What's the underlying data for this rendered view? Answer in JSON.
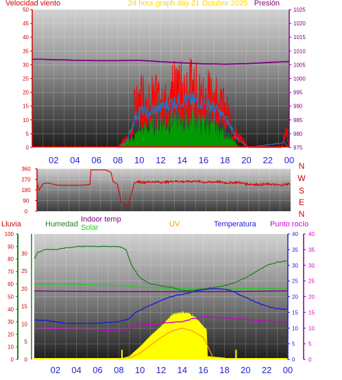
{
  "header": {
    "left_title": "Velocidad viento",
    "center_title": "24 hour graph day   21 Octubre 2025",
    "right_title": "Presión"
  },
  "colors": {
    "wind_speed": "#ff0000",
    "wind_avg": "#1e78c8",
    "wind_green": "#00a000",
    "pressure": "#800080",
    "wind_dir": "#e00000",
    "rain": "#ff0000",
    "humidity": "#208020",
    "indoor_temp": "#800080",
    "solar": "#ffff00",
    "uv": "#ff9900",
    "temperature": "#1a1ad8",
    "dew_point": "#d000d0",
    "left_axis": "#d00000",
    "right_axis": "#800080",
    "title_yellow": "#ffd700"
  },
  "chart_data": [
    {
      "type": "line",
      "title": "24 hour graph day   21 Octubre 2025",
      "y_left_label": "Velocidad viento",
      "y_right_label": "Presión",
      "x_ticks": [
        "02",
        "04",
        "06",
        "08",
        "10",
        "12",
        "14",
        "16",
        "18",
        "20",
        "22",
        "00"
      ],
      "y_left_ticks": [
        "0",
        "5",
        "10",
        "15",
        "20",
        "25",
        "30",
        "35",
        "40",
        "45",
        "50"
      ],
      "y_right_ticks": [
        "975",
        "980",
        "985",
        "990",
        "995",
        "1000",
        "1005",
        "1010",
        "1015",
        "1020",
        "1025"
      ],
      "ylim_left": [
        0,
        50
      ],
      "ylim_right": [
        975,
        1025
      ],
      "xlim_hours": [
        0,
        24
      ],
      "grid": true,
      "series": [
        {
          "name": "pressure",
          "axis": "right",
          "x": [
            0,
            1,
            2,
            3,
            4,
            5,
            6,
            7,
            8,
            9,
            10,
            11,
            12,
            13,
            14,
            15,
            16,
            17,
            18,
            19,
            20,
            21,
            22,
            23,
            24
          ],
          "y": [
            1007,
            1007,
            1006.8,
            1006.8,
            1006.6,
            1006.6,
            1006.5,
            1006.5,
            1006.5,
            1006.6,
            1006.6,
            1006.4,
            1006.1,
            1005.9,
            1005.7,
            1005.5,
            1005.3,
            1005.3,
            1005.2,
            1005.3,
            1005.4,
            1005.6,
            1005.8,
            1006.0,
            1006.2
          ]
        },
        {
          "name": "gust_envelope",
          "axis": "left",
          "x": [
            8.0,
            8.4,
            8.8,
            9.1,
            9.6,
            10.2,
            11.0,
            12.0,
            13.0,
            13.6,
            14.2,
            15.0,
            16.0,
            16.6,
            17.2,
            18.0,
            18.6,
            19.2,
            19.8,
            20.2,
            23.3,
            23.7,
            24.0
          ],
          "y": [
            0,
            3,
            6,
            2,
            24,
            28,
            27,
            26,
            30,
            34,
            31,
            33,
            29,
            31,
            27,
            22,
            12,
            6,
            3,
            0,
            0,
            12,
            0
          ]
        },
        {
          "name": "average_envelope",
          "axis": "left",
          "x": [
            8.0,
            8.8,
            9.6,
            10.2,
            11.0,
            12.0,
            13.0,
            14.0,
            15.0,
            16.0,
            17.0,
            18.0,
            18.6,
            19.2,
            20.2,
            23.5,
            24.0
          ],
          "y": [
            0,
            2,
            12,
            15,
            14,
            16,
            18,
            19,
            19,
            18,
            16,
            12,
            8,
            3,
            0,
            2,
            0
          ]
        },
        {
          "name": "speed_envelope",
          "axis": "left",
          "x": [
            8.0,
            9.6,
            10.2,
            11.0,
            12.0,
            13.0,
            14.0,
            15.0,
            16.0,
            17.0,
            18.0,
            18.6,
            19.2,
            20.0
          ],
          "y": [
            0,
            6,
            9,
            10,
            12,
            13,
            12,
            14,
            12,
            10,
            7,
            4,
            1,
            0
          ]
        }
      ]
    },
    {
      "type": "line",
      "y_right_labels": [
        "N",
        "W",
        "S",
        "E",
        "N"
      ],
      "y_ticks": [
        "0",
        "90",
        "180",
        "270",
        "360"
      ],
      "ylim": [
        0,
        360
      ],
      "xlim_hours": [
        0,
        24
      ],
      "series": [
        {
          "name": "wind_direction",
          "x": [
            0,
            0.2,
            0.6,
            1.0,
            2.0,
            3.0,
            4.0,
            5.0,
            5.1,
            6.5,
            7.0,
            7.2,
            7.6,
            8.0,
            8.4,
            8.7,
            9.2,
            9.6,
            10.0,
            11.0,
            12.0,
            13.0,
            14.0,
            15.0,
            16.0,
            17.0,
            18.0,
            19.0,
            20.0,
            21.0,
            22.0,
            23.0,
            24.0
          ],
          "y": [
            230,
            180,
            235,
            240,
            220,
            220,
            220,
            225,
            350,
            350,
            330,
            250,
            230,
            70,
            50,
            60,
            240,
            250,
            245,
            250,
            245,
            255,
            250,
            255,
            245,
            250,
            240,
            245,
            230,
            225,
            230,
            220,
            235
          ]
        }
      ]
    },
    {
      "type": "area",
      "legend": [
        "Lluvia",
        "Humedad",
        "Indoor temp",
        "Solar",
        "UV",
        "Temperatura",
        "Punto rocío"
      ],
      "x_ticks": [
        "02",
        "04",
        "06",
        "08",
        "10",
        "12",
        "14",
        "16",
        "18",
        "20",
        "22",
        "00"
      ],
      "y_rain_ticks": [
        "0",
        "10",
        "20",
        "30",
        "40",
        "50",
        "60",
        "70",
        "80",
        "90",
        "100"
      ],
      "y_humidity_ticks": [
        "0",
        "5",
        "10",
        "15",
        "20",
        "25",
        "30"
      ],
      "y_temp_ticks": [
        "0",
        "5",
        "10",
        "15",
        "20",
        "25",
        "30",
        "35",
        "40"
      ],
      "y_dew_ticks": [
        "0",
        "5",
        "10",
        "15",
        "20",
        "25",
        "30",
        "35",
        "40"
      ],
      "ylim_temp": [
        0,
        40
      ],
      "xlim_hours": [
        0,
        24
      ],
      "grid": true,
      "series": [
        {
          "name": "Humedad",
          "x": [
            0,
            0.3,
            1.0,
            2.0,
            3.0,
            4.0,
            5.0,
            6.0,
            7.0,
            8.0,
            8.7,
            9.2,
            10.0,
            11.0,
            12.0,
            13.0,
            14.0,
            15.0,
            16.0,
            17.0,
            18.0,
            19.0,
            20.0,
            21.0,
            22.0,
            23.0,
            24.0
          ],
          "y": [
            32,
            34,
            35,
            35,
            35.5,
            36,
            36,
            36,
            36,
            36,
            35,
            30,
            26,
            24,
            23.5,
            23,
            22,
            22,
            22.5,
            23,
            23.5,
            24.5,
            26,
            28,
            30,
            31,
            31.5
          ]
        },
        {
          "name": "Indoor temp",
          "x": [
            0,
            4,
            8,
            12,
            16,
            20,
            24
          ],
          "y": [
            21.8,
            21.7,
            21.6,
            21.6,
            21.6,
            21.7,
            21.8
          ]
        },
        {
          "name": "Solar",
          "x": [
            0,
            4,
            8,
            9,
            10,
            12,
            14,
            16,
            18,
            19,
            20,
            22,
            24
          ],
          "y": [
            24,
            24,
            23.5,
            23.3,
            23,
            22.8,
            22.6,
            22.4,
            22.4,
            22.5,
            22.6,
            22.6,
            22.4
          ]
        },
        {
          "name": "Temperatura",
          "x": [
            0,
            1.0,
            2.0,
            3.0,
            4.0,
            5.0,
            6.0,
            7.0,
            8.0,
            8.5,
            9.0,
            9.6,
            10.5,
            11.5,
            12.5,
            13.5,
            14.5,
            15.5,
            16.5,
            17.5,
            18.0,
            18.6,
            19.5,
            20.5,
            21.5,
            22.5,
            23.5,
            24.0
          ],
          "y": [
            12.5,
            12.5,
            12,
            11.5,
            11.5,
            11.5,
            11.5,
            11.8,
            12,
            12.5,
            13,
            15,
            16.5,
            18,
            19.5,
            20.5,
            21,
            22,
            22.5,
            22.5,
            22.3,
            22,
            20.5,
            19,
            17.5,
            16.5,
            16,
            16
          ]
        },
        {
          "name": "Punto rocío",
          "x": [
            0,
            2,
            4,
            6,
            7,
            8,
            8.6,
            9.2,
            10,
            11,
            12,
            13,
            14,
            15,
            16,
            17,
            18,
            19,
            20,
            21,
            22,
            23,
            24
          ],
          "y": [
            9.5,
            9.8,
            9.5,
            9.5,
            9.2,
            9.0,
            9.5,
            10.5,
            11,
            11.2,
            11.5,
            11.8,
            12,
            13,
            13.5,
            13.5,
            13.2,
            13,
            12.8,
            12.5,
            12.2,
            12,
            12
          ]
        },
        {
          "name": "Solar_radiation_area",
          "x": [
            8.0,
            9.0,
            10.0,
            11.0,
            12.0,
            13.0,
            13.5,
            14.0,
            14.5,
            15.0,
            15.5,
            16.0,
            16.3,
            16.4,
            17.0,
            18.0,
            18.6
          ],
          "y": [
            0,
            1,
            4,
            7.5,
            10.5,
            14,
            14.7,
            15,
            14.7,
            14,
            12.5,
            10.5,
            9.5,
            1,
            0.8,
            0.5,
            0
          ]
        },
        {
          "name": "UV",
          "x": [
            8.0,
            9.0,
            10.0,
            11.0,
            12.0,
            13.0,
            14.0,
            15.0,
            16.0,
            16.3,
            17.0
          ],
          "y": [
            0,
            0.5,
            2,
            4.5,
            7,
            9,
            10,
            9,
            7,
            5,
            0
          ]
        }
      ]
    }
  ],
  "bottom": {
    "legend": {
      "rain": "Lluvia",
      "humidity": "Humedad",
      "indoor": "Indoor temp",
      "solar": "Solar",
      "uv": "UV",
      "temperature": "Temperatura",
      "dew": "Punto rocío"
    }
  }
}
